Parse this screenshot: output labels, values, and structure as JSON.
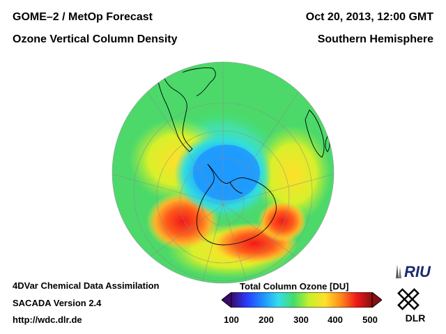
{
  "header": {
    "title_left_1": "GOME–2 / MetOp Forecast",
    "title_left_2": "Ozone Vertical Column Density",
    "title_right_1": "Oct 20, 2013, 12:00 GMT",
    "title_right_2": "Southern Hemisphere"
  },
  "footer": {
    "line1": "4DVar Chemical Data Assimilation",
    "line2": "SACADA Version 2.4",
    "line3": "http://wdc.dlr.de"
  },
  "colorbar": {
    "title": "Total Column Ozone [DU]",
    "ticks": [
      "100",
      "200",
      "300",
      "400",
      "500"
    ],
    "min": 100,
    "max": 500,
    "colors": [
      "#3a0a6e",
      "#2a3cff",
      "#1e90ff",
      "#33ddee",
      "#44dd66",
      "#c8f02a",
      "#ffe02a",
      "#ff8a1a",
      "#f01a1a",
      "#8a1010"
    ]
  },
  "map": {
    "projection": "orthographic",
    "hemisphere": "south"
  },
  "logos": {
    "riu": "RIU",
    "dlr": "DLR"
  }
}
